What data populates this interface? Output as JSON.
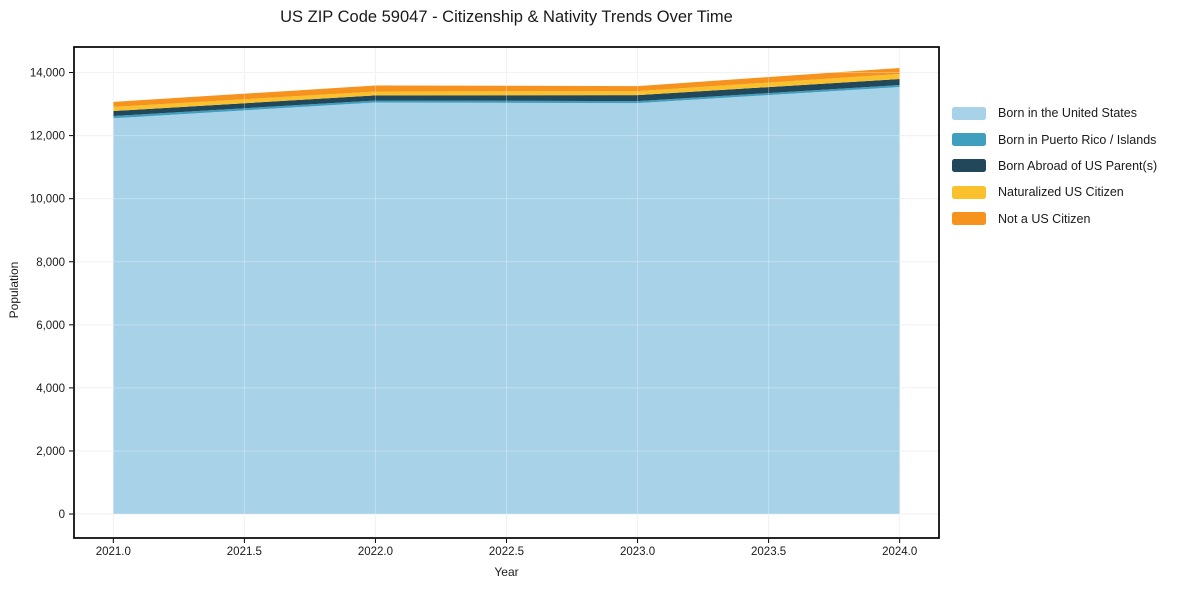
{
  "chart_data": {
    "type": "area",
    "stacked": true,
    "title": "US ZIP Code 59047 - Citizenship & Nativity Trends Over Time",
    "xlabel": "Year",
    "ylabel": "Population",
    "x": [
      2021,
      2022,
      2023,
      2024
    ],
    "series": [
      {
        "name": "Born in the United States",
        "color": "#a8d2e8",
        "values": [
          12550,
          13050,
          13030,
          13540
        ]
      },
      {
        "name": "Born in Puerto Rico / Islands",
        "color": "#409fbf",
        "values": [
          70,
          65,
          65,
          65
        ]
      },
      {
        "name": "Born Abroad of US Parent(s)",
        "color": "#21475a",
        "values": [
          160,
          160,
          190,
          190
        ]
      },
      {
        "name": "Naturalized US Citizen",
        "color": "#fbc12d",
        "values": [
          130,
          125,
          125,
          160
        ]
      },
      {
        "name": "Not a US Citizen",
        "color": "#f6921e",
        "values": [
          160,
          190,
          160,
          190
        ]
      }
    ],
    "xlim": [
      2020.85,
      2024.15
    ],
    "ylim": [
      -760,
      14810
    ],
    "x_ticks": [
      2021.0,
      2021.5,
      2022.0,
      2022.5,
      2023.0,
      2023.5,
      2024.0
    ],
    "x_tick_labels": [
      "2021.0",
      "2021.5",
      "2022.0",
      "2022.5",
      "2023.0",
      "2023.5",
      "2024.0"
    ],
    "y_ticks": [
      0,
      2000,
      4000,
      6000,
      8000,
      10000,
      12000,
      14000
    ],
    "y_tick_labels": [
      "0",
      "2,000",
      "4,000",
      "6,000",
      "8,000",
      "10,000",
      "12,000",
      "14,000"
    ],
    "grid": true,
    "legend_position": "right-outside",
    "colors": {
      "axis": "#000000",
      "grid": "#ececec",
      "grid_over_area": "rgba(255,255,255,0.30)",
      "background": "#ffffff"
    }
  }
}
